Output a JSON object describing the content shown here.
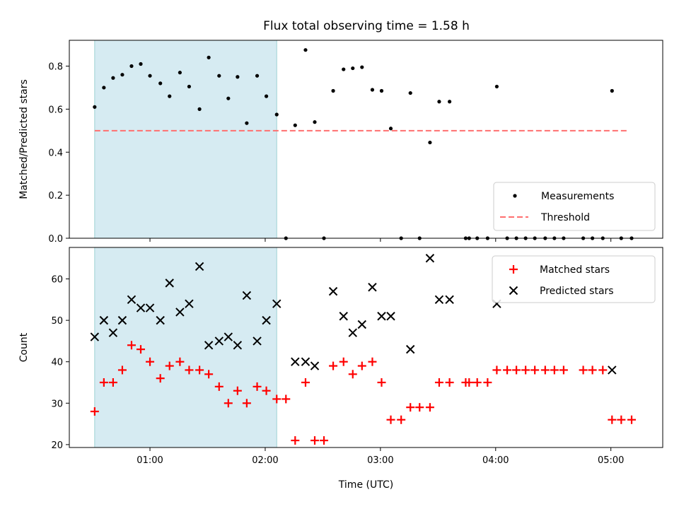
{
  "chart_data": [
    {
      "type": "scatter",
      "title": "Flux total observing time = 1.58 h",
      "xlabel": "",
      "ylabel": "Matched/Predicted stars",
      "xlim": [
        0.3,
        5.45
      ],
      "ylim": [
        0,
        0.92
      ],
      "yticks": [
        {
          "v": 0.0,
          "label": "0.0"
        },
        {
          "v": 0.2,
          "label": "0.2"
        },
        {
          "v": 0.4,
          "label": "0.4"
        },
        {
          "v": 0.6,
          "label": "0.6"
        },
        {
          "v": 0.8,
          "label": "0.8"
        }
      ],
      "xticks": [
        {
          "v": 1.0,
          "label": "01:00"
        },
        {
          "v": 2.0,
          "label": "02:00"
        },
        {
          "v": 3.0,
          "label": "03:00"
        },
        {
          "v": 4.0,
          "label": "04:00"
        },
        {
          "v": 5.0,
          "label": "05:00"
        }
      ],
      "shaded_span": [
        0.52,
        2.1
      ],
      "shade_color": "#add8e6",
      "legend_position": "lower right",
      "threshold": {
        "name": "Threshold",
        "y": 0.5,
        "x": [
          0.52,
          5.15
        ],
        "color": "#ff6f6f"
      },
      "series": [
        {
          "name": "Measurements",
          "color": "#000000",
          "marker": "dot",
          "x": [
            0.52,
            0.6,
            0.68,
            0.76,
            0.84,
            0.92,
            1.0,
            1.09,
            1.17,
            1.26,
            1.34,
            1.43,
            1.51,
            1.6,
            1.68,
            1.76,
            1.84,
            1.93,
            2.01,
            2.1,
            2.18,
            2.26,
            2.35,
            2.43,
            2.51,
            2.59,
            2.68,
            2.76,
            2.84,
            2.93,
            3.01,
            3.09,
            3.18,
            3.26,
            3.34,
            3.43,
            3.51,
            3.6,
            3.74,
            3.77,
            3.84,
            3.93,
            4.01,
            4.1,
            4.18,
            4.26,
            4.34,
            4.43,
            4.51,
            4.59,
            4.76,
            4.84,
            4.93,
            5.01,
            5.09,
            5.18
          ],
          "y": [
            0.61,
            0.7,
            0.745,
            0.76,
            0.8,
            0.81,
            0.755,
            0.72,
            0.66,
            0.77,
            0.705,
            0.6,
            0.84,
            0.755,
            0.65,
            0.75,
            0.535,
            0.755,
            0.66,
            0.575,
            0.0,
            0.525,
            0.875,
            0.54,
            0.0,
            0.685,
            0.785,
            0.79,
            0.795,
            0.69,
            0.685,
            0.51,
            0.0,
            0.675,
            0.0,
            0.445,
            0.635,
            0.635,
            0.0,
            0.0,
            0.0,
            0.0,
            0.705,
            0.0,
            0.0,
            0.0,
            0.0,
            0.0,
            0.0,
            0.0,
            0.0,
            0.0,
            0.0,
            0.685,
            0.0,
            0.0
          ]
        }
      ]
    },
    {
      "type": "scatter",
      "title": "",
      "xlabel": "Time (UTC)",
      "ylabel": "Count",
      "xlim": [
        0.3,
        5.45
      ],
      "ylim": [
        19.3,
        67.6
      ],
      "yticks": [
        {
          "v": 20,
          "label": "20"
        },
        {
          "v": 30,
          "label": "30"
        },
        {
          "v": 40,
          "label": "40"
        },
        {
          "v": 50,
          "label": "50"
        },
        {
          "v": 60,
          "label": "60"
        }
      ],
      "xticks": [
        {
          "v": 1.0,
          "label": "01:00"
        },
        {
          "v": 2.0,
          "label": "02:00"
        },
        {
          "v": 3.0,
          "label": "03:00"
        },
        {
          "v": 4.0,
          "label": "04:00"
        },
        {
          "v": 5.0,
          "label": "05:00"
        }
      ],
      "shaded_span": [
        0.52,
        2.1
      ],
      "shade_color": "#add8e6",
      "legend_position": "upper right",
      "series": [
        {
          "name": "Matched stars",
          "color": "#ff0000",
          "marker": "plus",
          "x": [
            0.52,
            0.6,
            0.68,
            0.76,
            0.84,
            0.92,
            1.0,
            1.09,
            1.17,
            1.26,
            1.34,
            1.43,
            1.51,
            1.6,
            1.68,
            1.76,
            1.84,
            1.93,
            2.01,
            2.1,
            2.18,
            2.26,
            2.35,
            2.43,
            2.51,
            2.59,
            2.68,
            2.76,
            2.84,
            2.93,
            3.01,
            3.09,
            3.18,
            3.26,
            3.34,
            3.43,
            3.51,
            3.6,
            3.74,
            3.77,
            3.84,
            3.93,
            4.01,
            4.1,
            4.18,
            4.26,
            4.34,
            4.43,
            4.51,
            4.59,
            4.76,
            4.84,
            4.93,
            5.01,
            5.09,
            5.18
          ],
          "y": [
            28,
            35,
            35,
            38,
            44,
            43,
            40,
            36,
            39,
            40,
            38,
            38,
            37,
            34,
            30,
            33,
            30,
            34,
            33,
            31,
            31,
            21,
            35,
            21,
            21,
            39,
            40,
            37,
            39,
            40,
            35,
            26,
            26,
            29,
            29,
            29,
            35,
            35,
            35,
            35,
            35,
            35,
            38,
            38,
            38,
            38,
            38,
            38,
            38,
            38,
            38,
            38,
            38,
            26,
            26,
            26
          ]
        },
        {
          "name": "Predicted stars",
          "color": "#000000",
          "marker": "x",
          "x": [
            0.52,
            0.6,
            0.68,
            0.76,
            0.84,
            0.92,
            1.0,
            1.09,
            1.17,
            1.26,
            1.34,
            1.43,
            1.51,
            1.6,
            1.68,
            1.76,
            1.84,
            1.93,
            2.01,
            2.1,
            2.26,
            2.35,
            2.43,
            2.59,
            2.68,
            2.76,
            2.84,
            2.93,
            3.01,
            3.09,
            3.26,
            3.43,
            3.51,
            3.6,
            4.01,
            5.01
          ],
          "y": [
            46,
            50,
            47,
            50,
            55,
            53,
            53,
            50,
            59,
            52,
            54,
            63,
            44,
            45,
            46,
            44,
            56,
            45,
            50,
            54,
            40,
            40,
            39,
            57,
            51,
            47,
            49,
            58,
            51,
            51,
            43,
            65,
            55,
            55,
            54,
            38
          ]
        }
      ]
    }
  ]
}
